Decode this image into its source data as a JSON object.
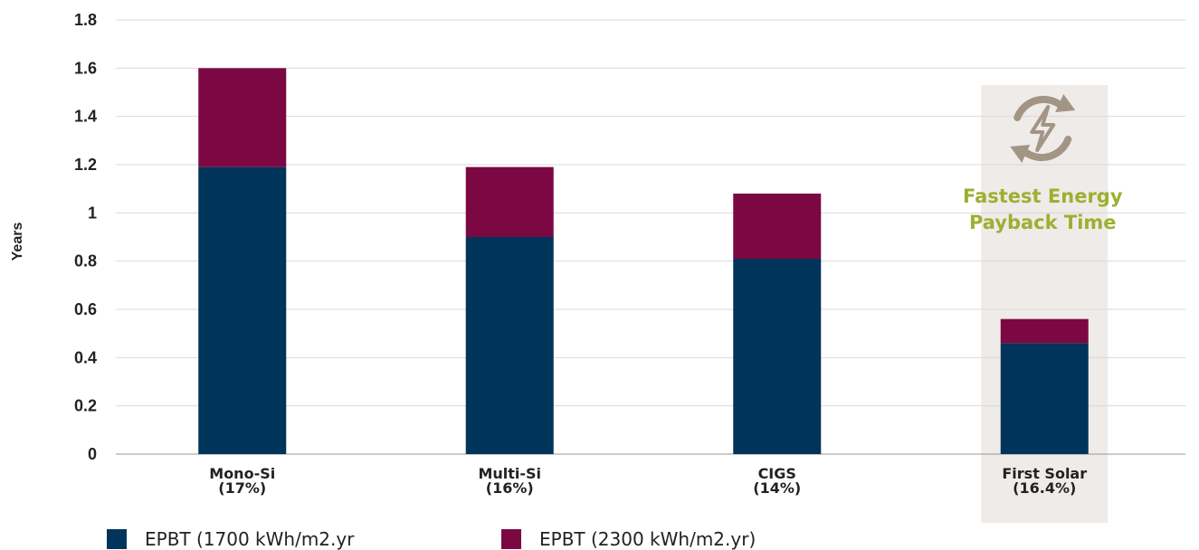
{
  "chart_data": {
    "type": "bar",
    "stacked": true,
    "title": "",
    "xlabel": "",
    "ylabel": "Years",
    "ylim": [
      0,
      1.8
    ],
    "yticks": [
      "0",
      "0.2",
      "0.4",
      "0.6",
      "0.8",
      "1",
      "1.2",
      "1.4",
      "1.6",
      "1.8"
    ],
    "grid": true,
    "legend_position": "bottom-left",
    "categories": [
      [
        "Mono-Si",
        "(17%)"
      ],
      [
        "Multi-Si",
        "(16%)"
      ],
      [
        "CIGS",
        "(14%)"
      ],
      [
        "First Solar",
        "(16.4%)"
      ]
    ],
    "series": [
      {
        "name": "EPBT (1700 kWh/m2.yr",
        "color": "#00345b",
        "values": [
          1.19,
          0.9,
          0.81,
          0.46
        ]
      },
      {
        "name": "EPBT (2300 kWh/m2.yr)",
        "color": "#7b0843",
        "values": [
          0.41,
          0.29,
          0.27,
          0.1
        ]
      }
    ],
    "highlight": {
      "category_index": 3,
      "background": "#efebe8",
      "icon": "energy-cycle-bolt-icon",
      "icon_color": "#a39585",
      "text_lines": [
        "Fastest Energy",
        "Payback Time"
      ],
      "text_color": "#9cb031"
    }
  }
}
